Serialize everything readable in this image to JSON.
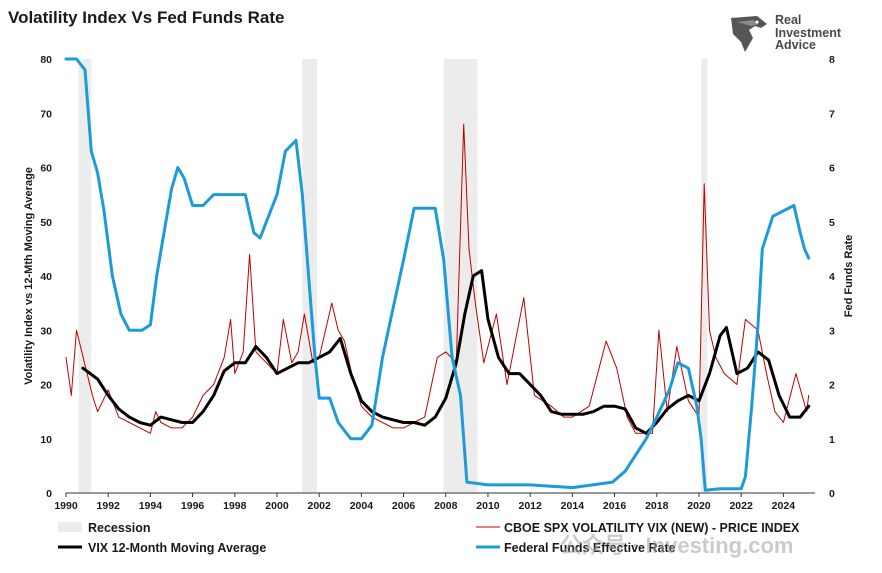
{
  "chart_data": {
    "type": "line",
    "title": "Volatility Index Vs Fed Funds Rate",
    "ylabel_left": "Volatility Index vs 12-Mth Moving Average",
    "ylabel_right": "Fed Funds Rate",
    "xlim": [
      1990,
      2025.5
    ],
    "ylim_left": [
      0,
      80
    ],
    "ylim_right": [
      0,
      8
    ],
    "x_ticks": [
      "1990",
      "1992",
      "1994",
      "1996",
      "1998",
      "2000",
      "2002",
      "2004",
      "2006",
      "2008",
      "2010",
      "2012",
      "2014",
      "2016",
      "2018",
      "2020",
      "2022",
      "2024"
    ],
    "y_ticks_left": [
      "0",
      "10",
      "20",
      "30",
      "40",
      "50",
      "60",
      "70",
      "80"
    ],
    "y_ticks_right": [
      "0",
      "1",
      "2",
      "3",
      "4",
      "5",
      "6",
      "7",
      "8"
    ],
    "grid": false,
    "legend_position": "bottom",
    "recessions": [
      [
        1990.6,
        1991.2
      ],
      [
        2001.2,
        2001.9
      ],
      [
        2007.9,
        2009.5
      ],
      [
        2020.1,
        2020.4
      ]
    ],
    "series": [
      {
        "name": "CBOE SPX VOLATILITY VIX (NEW) - PRICE INDEX",
        "axis": "left",
        "color": "#c00000",
        "x": [
          1990.0,
          1990.25,
          1990.5,
          1990.75,
          1991.0,
          1991.25,
          1991.5,
          1991.75,
          1992.0,
          1992.5,
          1993.0,
          1993.5,
          1994.0,
          1994.25,
          1994.5,
          1995.0,
          1995.5,
          1996.0,
          1996.5,
          1997.0,
          1997.5,
          1997.8,
          1998.0,
          1998.4,
          1998.7,
          1999.0,
          1999.5,
          2000.0,
          2000.3,
          2000.7,
          2001.0,
          2001.3,
          2001.7,
          2002.0,
          2002.6,
          2002.9,
          2003.2,
          2003.6,
          2004.0,
          2004.5,
          2005.0,
          2005.5,
          2006.0,
          2006.5,
          2007.0,
          2007.6,
          2008.0,
          2008.5,
          2008.85,
          2009.1,
          2009.4,
          2009.8,
          2010.4,
          2010.9,
          2011.7,
          2012.2,
          2013.0,
          2013.6,
          2014.0,
          2014.8,
          2015.6,
          2016.1,
          2016.6,
          2017.0,
          2017.8,
          2018.1,
          2018.5,
          2018.95,
          2019.5,
          2020.0,
          2020.25,
          2020.5,
          2020.8,
          2021.2,
          2021.8,
          2022.2,
          2022.8,
          2023.2,
          2023.6,
          2024.0,
          2024.6,
          2025.1,
          2025.2
        ],
        "values": [
          25,
          18,
          30,
          26,
          22,
          18,
          15,
          17,
          19,
          14,
          13,
          12,
          11,
          15,
          13,
          12,
          12,
          14,
          18,
          20,
          25,
          32,
          22,
          26,
          44,
          26,
          24,
          22,
          32,
          24,
          26,
          33,
          24,
          25,
          35,
          30,
          28,
          21,
          16,
          14,
          13,
          12,
          12,
          13,
          14,
          25,
          26,
          24,
          68,
          45,
          35,
          24,
          33,
          20,
          36,
          18,
          16,
          14,
          14,
          16,
          28,
          23,
          14,
          11,
          11,
          30,
          15,
          27,
          17,
          14,
          57,
          30,
          25,
          22,
          20,
          32,
          30,
          22,
          15,
          13,
          22,
          15,
          18
        ]
      },
      {
        "name": "VIX 12-Month Moving Average",
        "axis": "left",
        "color": "#000000",
        "x": [
          1990.8,
          1991.5,
          1992.0,
          1992.5,
          1993.0,
          1993.5,
          1994.0,
          1994.5,
          1995.0,
          1995.5,
          1996.0,
          1996.5,
          1997.0,
          1997.5,
          1998.0,
          1998.5,
          1999.0,
          1999.5,
          2000.0,
          2000.5,
          2001.0,
          2001.5,
          2002.0,
          2002.5,
          2003.0,
          2003.5,
          2004.0,
          2004.5,
          2005.0,
          2005.5,
          2006.0,
          2006.5,
          2007.0,
          2007.5,
          2008.0,
          2008.5,
          2008.9,
          2009.3,
          2009.7,
          2010.0,
          2010.5,
          2011.0,
          2011.5,
          2012.0,
          2012.5,
          2013.0,
          2013.5,
          2014.0,
          2014.5,
          2015.0,
          2015.5,
          2016.0,
          2016.5,
          2017.0,
          2017.5,
          2018.0,
          2018.5,
          2019.0,
          2019.5,
          2020.0,
          2020.5,
          2021.0,
          2021.3,
          2021.8,
          2022.3,
          2022.8,
          2023.3,
          2023.8,
          2024.3,
          2024.8,
          2025.2
        ],
        "values": [
          23,
          21,
          18,
          15.5,
          14,
          13,
          12.5,
          14,
          13.5,
          13,
          13,
          15,
          18,
          22.5,
          24,
          24,
          27,
          25,
          22,
          23,
          24,
          24,
          25,
          26,
          28.5,
          22,
          17,
          15,
          14,
          13.5,
          13,
          13,
          12.5,
          14,
          17.5,
          24,
          33,
          40,
          41,
          32,
          25,
          22,
          22,
          20,
          18,
          15,
          14.5,
          14.5,
          14.5,
          15,
          16,
          16,
          15.5,
          12,
          11,
          13,
          15.5,
          17,
          18,
          17,
          22,
          29,
          30.5,
          22,
          23,
          26,
          24.5,
          18,
          14,
          14,
          16
        ]
      },
      {
        "name": "Federal Funds Effective Rate",
        "axis": "right",
        "color": "#1d9bd8",
        "x": [
          1990.0,
          1990.5,
          1990.9,
          1991.2,
          1991.5,
          1991.8,
          1992.2,
          1992.6,
          1993.0,
          1993.6,
          1994.0,
          1994.3,
          1994.6,
          1995.0,
          1995.3,
          1995.6,
          1996.0,
          1996.5,
          1997.0,
          1997.5,
          1998.0,
          1998.5,
          1998.9,
          1999.2,
          1999.6,
          2000.0,
          2000.4,
          2000.9,
          2001.2,
          2001.5,
          2001.8,
          2002.0,
          2002.5,
          2002.9,
          2003.5,
          2004.0,
          2004.5,
          2005.0,
          2005.5,
          2006.0,
          2006.5,
          2007.0,
          2007.5,
          2007.9,
          2008.3,
          2008.7,
          2009.0,
          2010.0,
          2012.0,
          2014.0,
          2015.9,
          2016.5,
          2017.0,
          2017.5,
          2018.0,
          2018.6,
          2019.0,
          2019.5,
          2019.9,
          2020.1,
          2020.3,
          2021.0,
          2022.0,
          2022.2,
          2022.5,
          2022.8,
          2023.0,
          2023.5,
          2024.5,
          2024.8,
          2025.0,
          2025.2
        ],
        "values": [
          8.2,
          8.2,
          7.8,
          6.3,
          5.9,
          5.2,
          4.0,
          3.3,
          3.0,
          3.0,
          3.1,
          4.0,
          4.7,
          5.6,
          6.0,
          5.8,
          5.3,
          5.3,
          5.5,
          5.5,
          5.5,
          5.5,
          4.8,
          4.7,
          5.1,
          5.5,
          6.3,
          6.5,
          5.5,
          4.0,
          2.5,
          1.75,
          1.75,
          1.3,
          1.0,
          1.0,
          1.25,
          2.5,
          3.4,
          4.3,
          5.25,
          5.25,
          5.25,
          4.3,
          2.5,
          1.8,
          0.2,
          0.15,
          0.15,
          0.1,
          0.2,
          0.4,
          0.7,
          1.0,
          1.4,
          1.9,
          2.4,
          2.3,
          1.6,
          1.0,
          0.05,
          0.08,
          0.08,
          0.3,
          1.6,
          3.1,
          4.5,
          5.1,
          5.3,
          4.8,
          4.5,
          4.33
        ]
      }
    ],
    "legend": {
      "recession": "Recession",
      "vix": "CBOE SPX VOLATILITY VIX (NEW) - PRICE INDEX",
      "ma": "VIX 12-Month Moving Average",
      "fed": "Federal Funds Effective Rate"
    }
  },
  "brand": {
    "line1": "Real",
    "line2": "Investment",
    "line3": "Advice",
    "logo_icon": "eagle-head-icon"
  },
  "watermark": "公众号 · Investing.com",
  "colors": {
    "recession_fill": "#ececec",
    "vix": "#c00000",
    "moving_average": "#000000",
    "fed_funds": "#1d9bd8"
  }
}
